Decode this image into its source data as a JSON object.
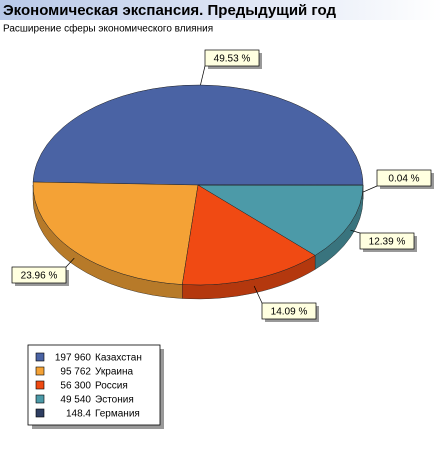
{
  "chart_data": {
    "type": "pie",
    "title": "Экономическая экспансия. Предыдущий год",
    "subtitle": "Расширение сферы экономического влияния",
    "categories": [
      "Казахстан",
      "Украина",
      "Россия",
      "Эстония",
      "Германия"
    ],
    "values": [
      197960,
      95762,
      56300,
      49540,
      148.4
    ],
    "value_labels": [
      "49.53 %",
      "23.96 %",
      "14.09 %",
      "12.39 %",
      "0.04 %"
    ],
    "legend_value_labels": [
      "197 960",
      "95 762",
      "56 300",
      "49 540",
      "148.4"
    ],
    "colors": [
      "#4a63a4",
      "#f4a236",
      "#f04a13",
      "#4c9aa8",
      "#2f3e62"
    ]
  }
}
